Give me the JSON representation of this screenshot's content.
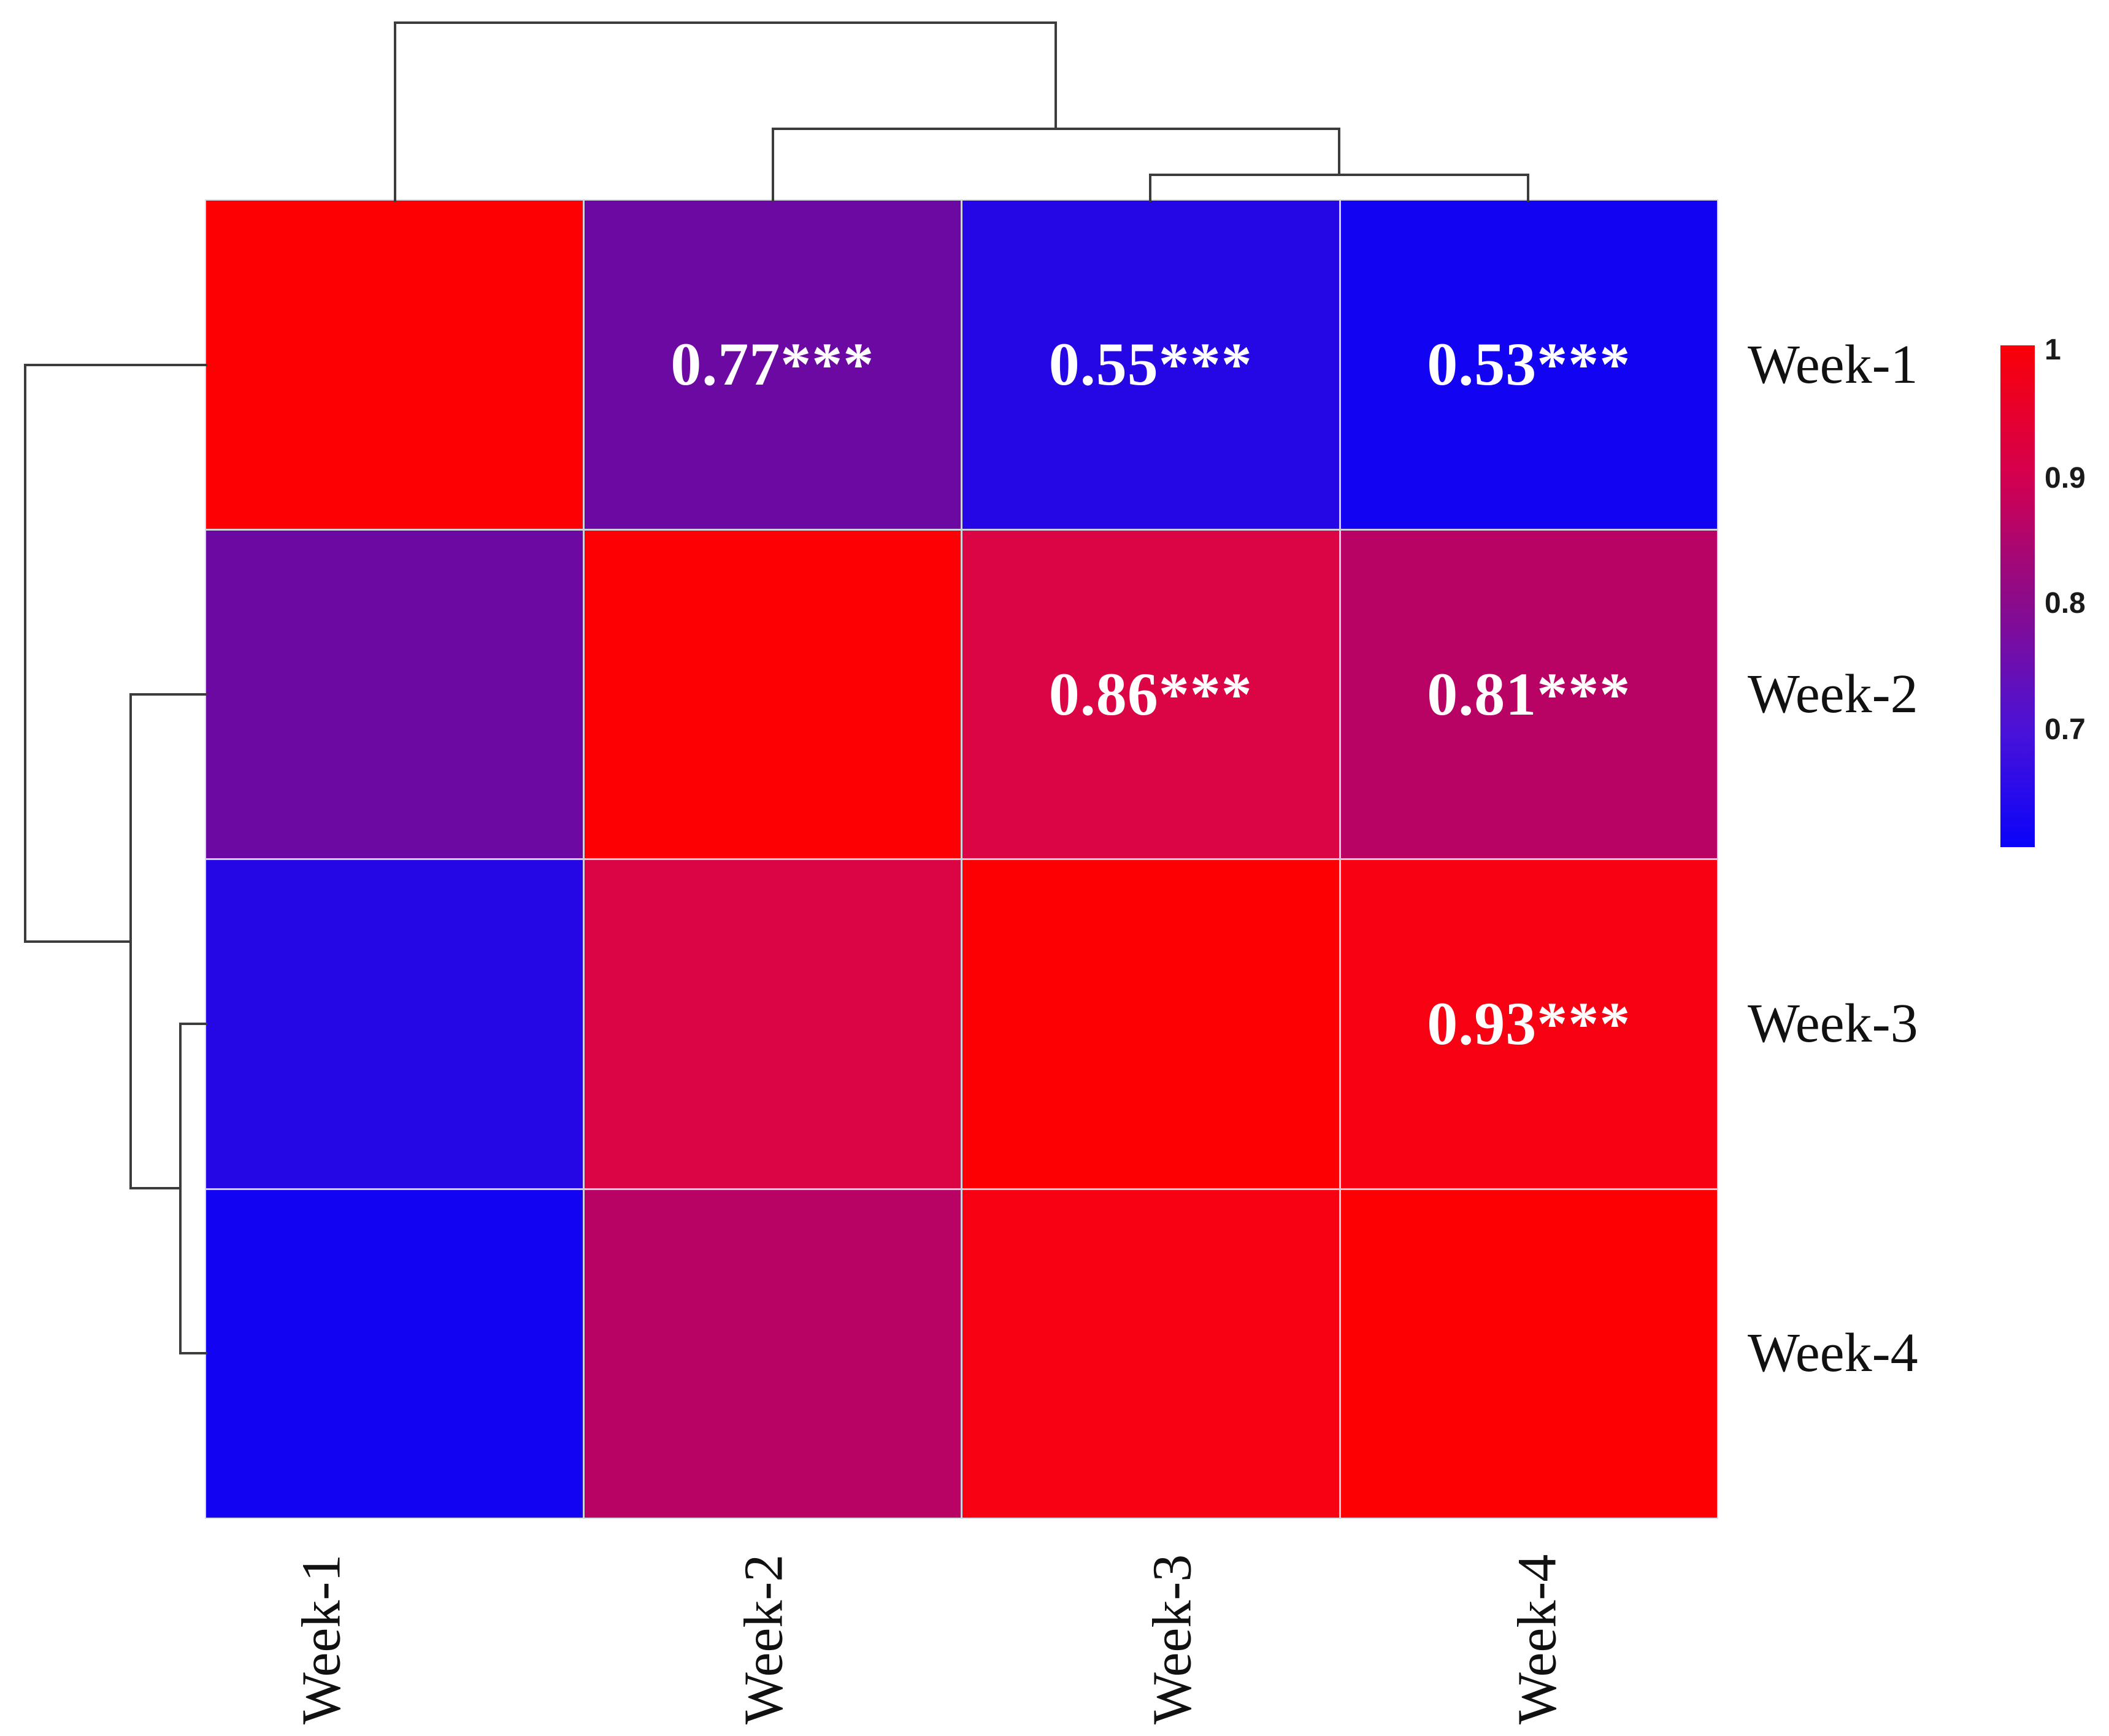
{
  "figure": {
    "background_color": "#ffffff",
    "description": "Clustered correlation heatmap of weekly measurements with row and column dendrograms"
  },
  "chart_data": {
    "type": "heatmap",
    "title": "",
    "rows": [
      "Week-1",
      "Week-2",
      "Week-3",
      "Week-4"
    ],
    "columns": [
      "Week-1",
      "Week-2",
      "Week-3",
      "Week-4"
    ],
    "matrix": [
      [
        1.0,
        0.77,
        0.55,
        0.53
      ],
      [
        0.77,
        1.0,
        0.86,
        0.81
      ],
      [
        0.55,
        0.86,
        1.0,
        0.93
      ],
      [
        0.53,
        0.81,
        0.93,
        1.0
      ]
    ],
    "cell_labels": [
      [
        "",
        "0.77***",
        "0.55***",
        "0.53***"
      ],
      [
        "",
        "",
        "0.86***",
        "0.81***"
      ],
      [
        "",
        "",
        "",
        "0.93***"
      ],
      [
        "",
        "",
        "",
        ""
      ]
    ],
    "value_text_color": "#ffffff",
    "color_map": {
      "1": "#fd0004",
      "0.93": "#f80213",
      "0.86": "#db0444",
      "0.81": "#b80264",
      "0.77": "#6c09a3",
      "0.55": "#2407e4",
      "0.53": "#1204f3"
    },
    "colorbar": {
      "tick_labels": [
        "1",
        "0.9",
        "0.8",
        "0.7"
      ],
      "top_value": 1.0,
      "bottom_value": 0.61,
      "gradient_stops": [
        [
          "#fa0007",
          "0%"
        ],
        [
          "#d4004f",
          "26%"
        ],
        [
          "#8b0b8b",
          "51%"
        ],
        [
          "#4912d9",
          "77%"
        ],
        [
          "#0a03fa",
          "100%"
        ]
      ]
    },
    "column_dendrogram": "(Week-1,(Week-2,(Week-3,Week-4)))",
    "row_dendrogram": "(Week-1,(Week-2,(Week-3,Week-4)))",
    "grid": true,
    "legend_position": "right",
    "axis_label_color": "#111111"
  }
}
